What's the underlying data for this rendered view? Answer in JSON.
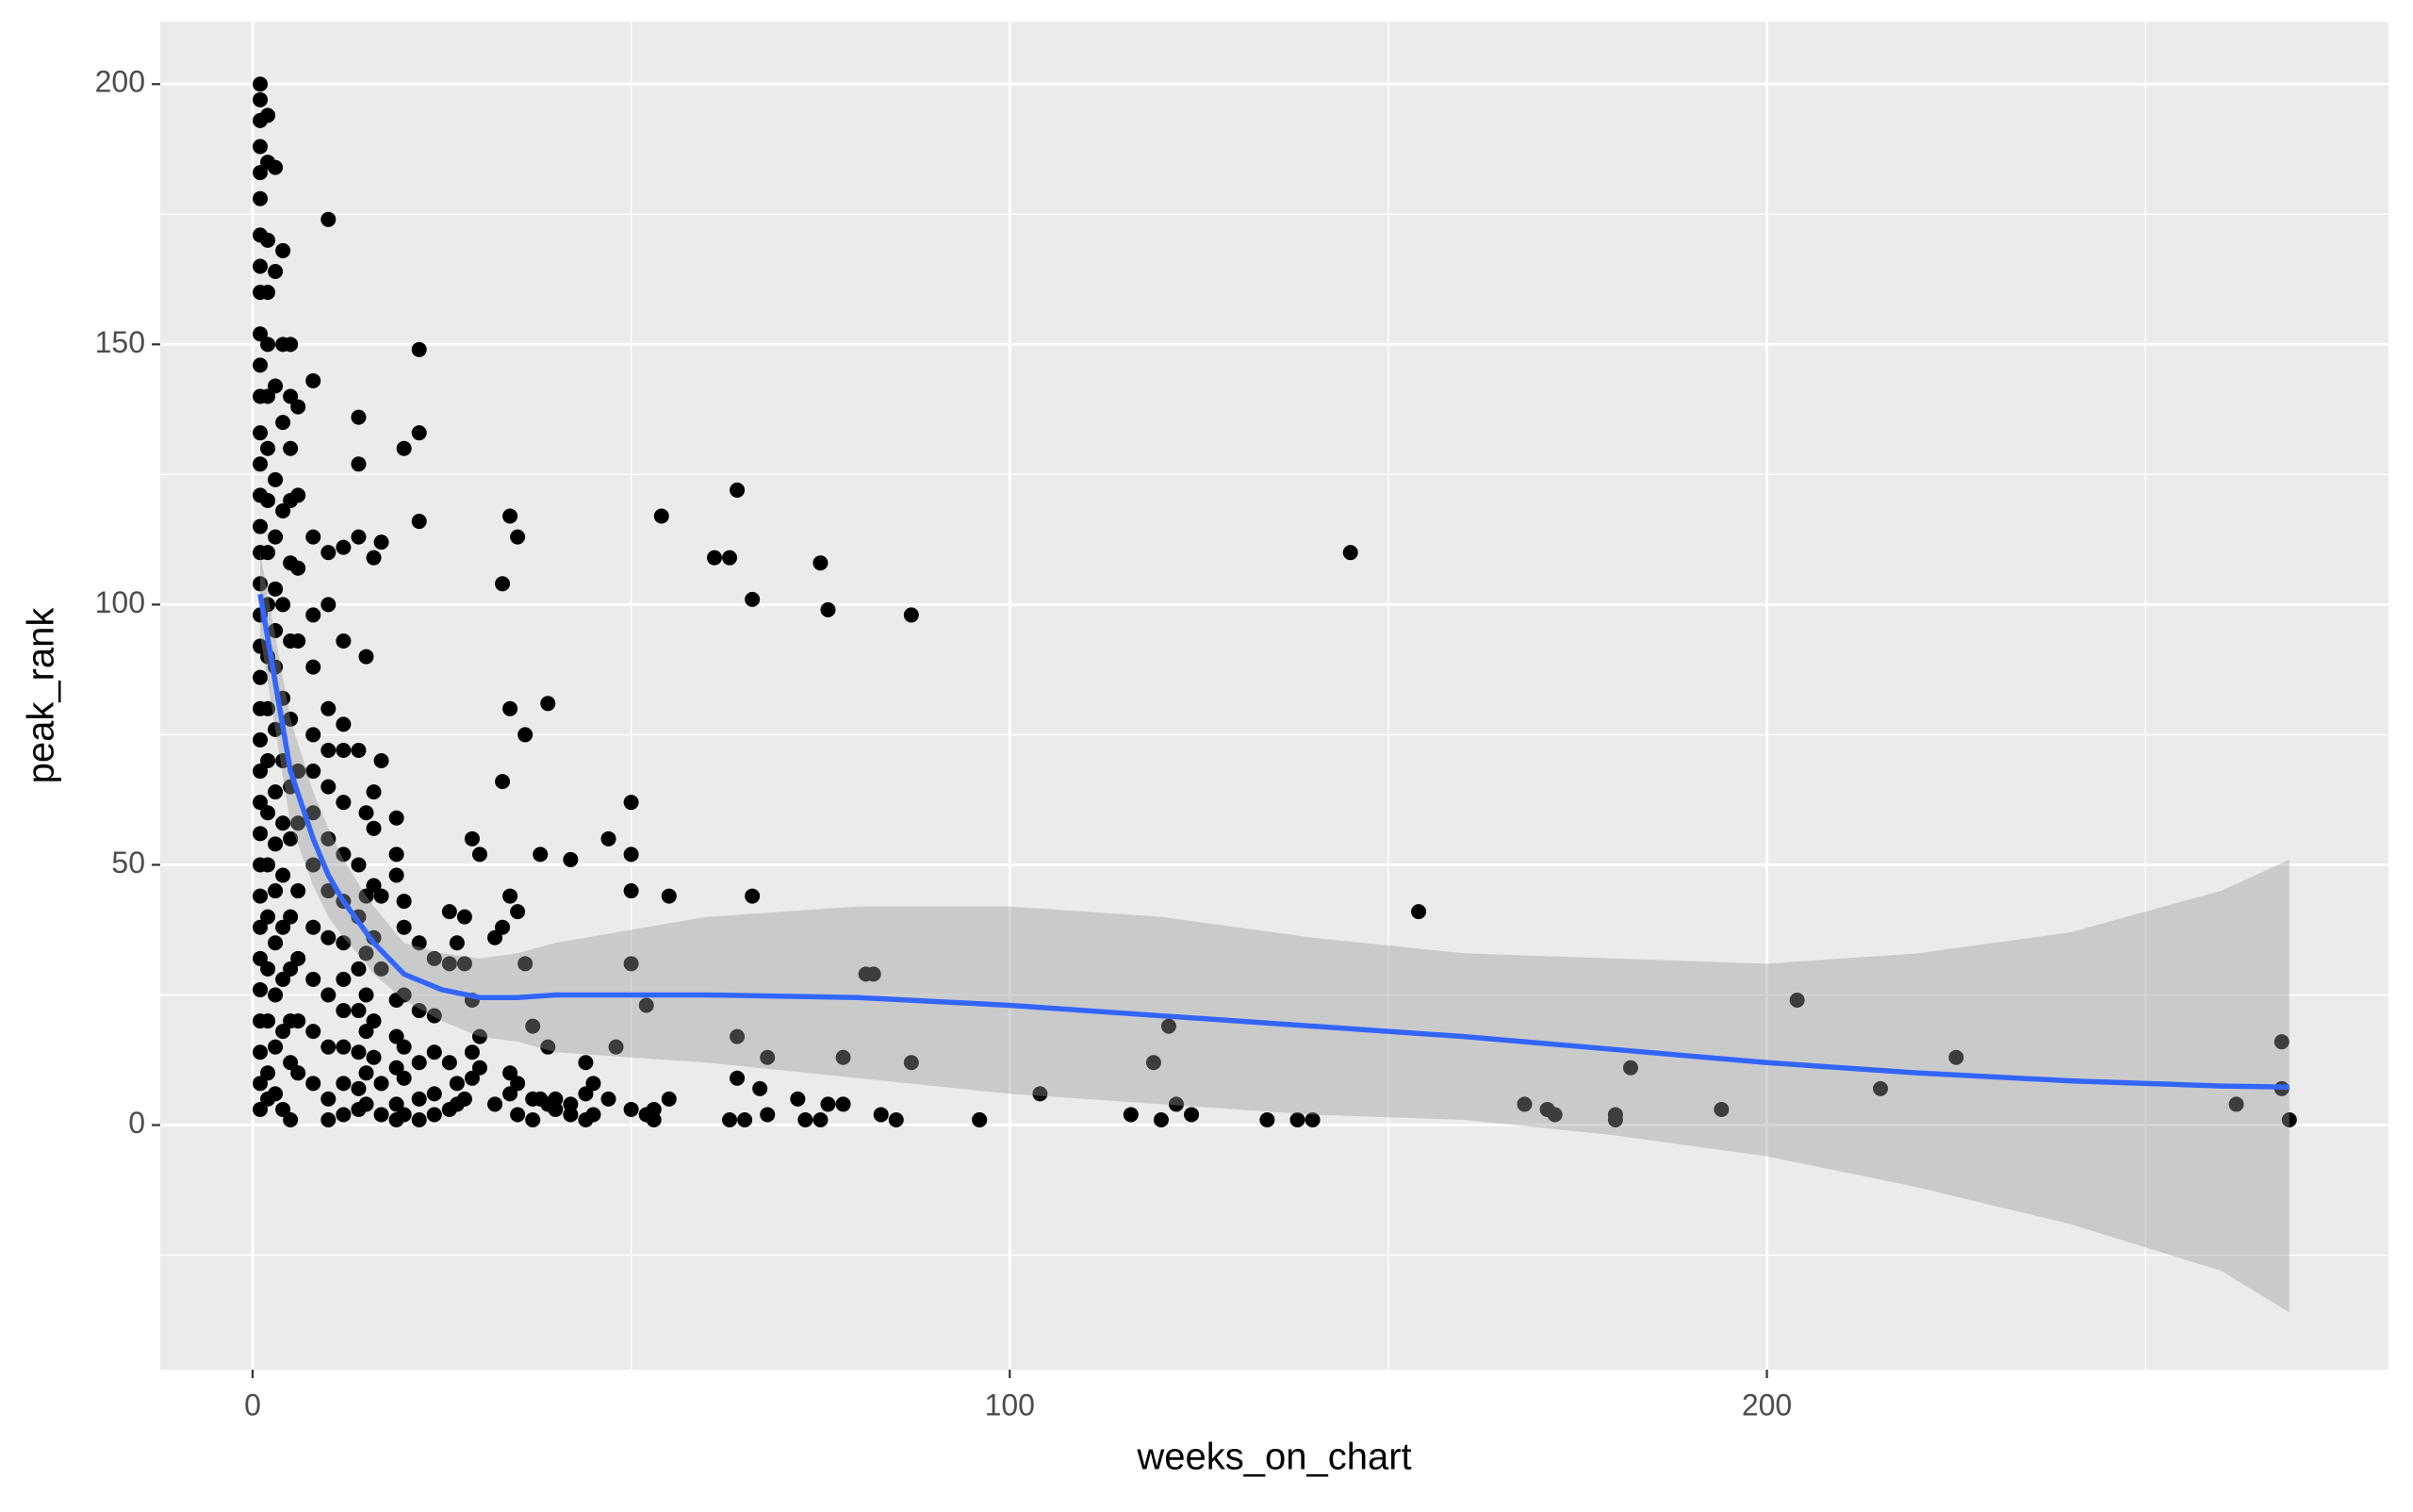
{
  "chart_data": {
    "type": "scatter",
    "xlabel": "weeks_on_chart",
    "ylabel": "peak_rank",
    "xlim": [
      -12.2,
      282.1
    ],
    "xticks": [
      0,
      100,
      200
    ],
    "xminor": [
      50,
      150,
      250
    ],
    "ylim": [
      -47,
      212
    ],
    "yticks": [
      0,
      50,
      100,
      150,
      200
    ],
    "yminor": [
      -25,
      25,
      75,
      125,
      175
    ],
    "grid": true,
    "background": "#ebebeb",
    "series": [
      {
        "type": "scatter",
        "color": "#000000",
        "x": [
          1,
          1,
          1,
          1,
          1,
          1,
          1,
          1,
          1,
          1,
          1,
          1,
          1,
          1,
          1,
          1,
          1,
          1,
          1,
          1,
          1,
          1,
          1,
          1,
          1,
          1,
          1,
          1,
          1,
          1,
          1,
          1,
          1,
          1,
          1,
          2,
          2,
          2,
          2,
          2,
          2,
          2,
          2,
          2,
          2,
          2,
          2,
          2,
          2,
          2,
          2,
          2,
          2,
          2,
          2,
          3,
          3,
          3,
          3,
          3,
          3,
          3,
          3,
          3,
          3,
          3,
          3,
          3,
          3,
          3,
          3,
          4,
          4,
          4,
          4,
          4,
          4,
          4,
          4,
          4,
          4,
          4,
          4,
          4,
          5,
          5,
          5,
          5,
          5,
          5,
          5,
          5,
          5,
          5,
          5,
          5,
          5,
          5,
          6,
          6,
          6,
          6,
          6,
          6,
          6,
          6,
          6,
          6,
          8,
          8,
          8,
          8,
          8,
          8,
          8,
          8,
          8,
          8,
          8,
          8,
          10,
          10,
          10,
          10,
          10,
          10,
          10,
          10,
          10,
          10,
          10,
          10,
          10,
          12,
          12,
          12,
          12,
          12,
          12,
          12,
          12,
          12,
          12,
          12,
          12,
          12,
          14,
          14,
          14,
          14,
          14,
          14,
          14,
          14,
          14,
          14,
          14,
          15,
          15,
          15,
          15,
          15,
          15,
          15,
          15,
          16,
          16,
          16,
          16,
          16,
          16,
          16,
          17,
          17,
          17,
          17,
          17,
          17,
          19,
          19,
          19,
          19,
          19,
          19,
          19,
          19,
          20,
          20,
          20,
          20,
          20,
          20,
          20,
          22,
          22,
          22,
          22,
          22,
          22,
          22,
          22,
          24,
          24,
          24,
          24,
          24,
          26,
          26,
          26,
          26,
          27,
          27,
          27,
          28,
          28,
          28,
          29,
          29,
          29,
          29,
          30,
          30,
          30,
          32,
          32,
          33,
          33,
          33,
          34,
          34,
          34,
          34,
          34,
          35,
          35,
          35,
          35,
          36,
          36,
          37,
          37,
          37,
          38,
          38,
          39,
          39,
          39,
          40,
          40,
          42,
          42,
          42,
          44,
          44,
          44,
          45,
          45,
          47,
          47,
          48,
          50,
          50,
          50,
          50,
          50,
          52,
          52,
          53,
          53,
          54,
          55,
          55,
          61,
          63,
          63,
          64,
          64,
          64,
          65,
          66,
          66,
          67,
          68,
          68,
          72,
          73,
          75,
          75,
          76,
          76,
          78,
          78,
          81,
          82,
          83,
          85,
          87,
          87,
          96,
          96,
          104,
          116,
          119,
          120,
          121,
          122,
          124,
          134,
          138,
          140,
          145,
          154,
          168,
          171,
          172,
          180,
          180,
          182,
          194,
          204,
          215,
          225,
          262,
          268,
          268,
          269
        ],
        "values": [
          200,
          197,
          193,
          188,
          183,
          178,
          171,
          165,
          160,
          152,
          146,
          140,
          133,
          127,
          121,
          115,
          110,
          104,
          98,
          92,
          86,
          80,
          74,
          68,
          62,
          56,
          50,
          44,
          38,
          32,
          26,
          20,
          14,
          8,
          3,
          194,
          185,
          170,
          160,
          150,
          140,
          130,
          120,
          110,
          100,
          90,
          80,
          70,
          60,
          50,
          40,
          30,
          20,
          10,
          5,
          184,
          164,
          142,
          124,
          113,
          103,
          95,
          88,
          76,
          64,
          54,
          45,
          35,
          25,
          15,
          6,
          168,
          150,
          135,
          118,
          100,
          82,
          70,
          58,
          48,
          38,
          28,
          18,
          3,
          150,
          140,
          130,
          120,
          108,
          93,
          78,
          65,
          55,
          40,
          30,
          20,
          12,
          1,
          138,
          121,
          107,
          93,
          68,
          58,
          45,
          32,
          20,
          10,
          143,
          113,
          98,
          88,
          75,
          68,
          60,
          50,
          38,
          28,
          18,
          8,
          174,
          110,
          100,
          80,
          72,
          65,
          55,
          45,
          36,
          25,
          15,
          5,
          1,
          111,
          93,
          77,
          72,
          62,
          52,
          43,
          35,
          28,
          22,
          15,
          8,
          2,
          136,
          127,
          113,
          72,
          50,
          40,
          30,
          22,
          14,
          7,
          3,
          90,
          60,
          44,
          33,
          25,
          18,
          10,
          4,
          109,
          64,
          57,
          46,
          36,
          20,
          13,
          112,
          70,
          44,
          30,
          8,
          2,
          59,
          52,
          48,
          24,
          17,
          11,
          4,
          1,
          130,
          43,
          38,
          25,
          15,
          9,
          2,
          149,
          133,
          116,
          35,
          22,
          12,
          5,
          1,
          32,
          21,
          14,
          6,
          2,
          41,
          31,
          12,
          3,
          35,
          8,
          4,
          40,
          31,
          5,
          55,
          24,
          14,
          9,
          52,
          17,
          11,
          36,
          4,
          104,
          66,
          38,
          117,
          80,
          44,
          10,
          6,
          113,
          41,
          8,
          2,
          75,
          31,
          19,
          5,
          1,
          52,
          5,
          81,
          15,
          4,
          3,
          5,
          51,
          2,
          4,
          12,
          6,
          1,
          8,
          2,
          55,
          5,
          15,
          62,
          52,
          45,
          31,
          3,
          23,
          2,
          3,
          1,
          117,
          44,
          5,
          109,
          109,
          1,
          122,
          17,
          9,
          1,
          101,
          44,
          7,
          13,
          2,
          5,
          1,
          108,
          1,
          99,
          4,
          13,
          4,
          29,
          29,
          2,
          1,
          98,
          12,
          1,
          1,
          6,
          2,
          12,
          1,
          19,
          4,
          2,
          1,
          1,
          1,
          110,
          41,
          4,
          3,
          2,
          2,
          1,
          11,
          3,
          24,
          7,
          13,
          4,
          16,
          7,
          1
        ]
      },
      {
        "type": "smooth",
        "color": "#3366ff",
        "band_color": "#999999",
        "x": [
          1,
          3,
          5,
          8,
          10,
          12,
          15,
          16,
          20,
          25,
          30,
          35,
          40,
          60,
          80,
          100,
          120,
          140,
          160,
          180,
          200,
          220,
          240,
          260,
          269
        ],
        "values": [
          102,
          85,
          68,
          55,
          48,
          43,
          37,
          35,
          29,
          26,
          24.5,
          24.5,
          25,
          25,
          24.5,
          23,
          21,
          19,
          17,
          14.5,
          12,
          10,
          8.5,
          7.5,
          7.3
        ],
        "lower": [
          94,
          76,
          58,
          46,
          40,
          36,
          31,
          29,
          24,
          20,
          17,
          16,
          14,
          12,
          9,
          6,
          4,
          2,
          1,
          -2,
          -6,
          -12,
          -19,
          -28,
          -36
        ],
        "upper": [
          110,
          94,
          78,
          64,
          57,
          51,
          44,
          42,
          35,
          33,
          32,
          33,
          35,
          40,
          42,
          42,
          40,
          36,
          33,
          32,
          31,
          33,
          37,
          45,
          51
        ]
      }
    ]
  }
}
